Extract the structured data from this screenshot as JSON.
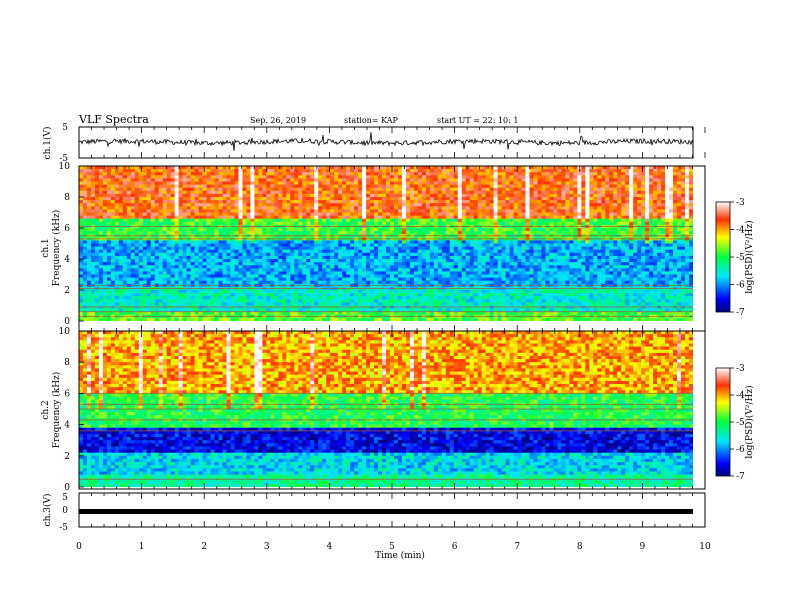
{
  "header": {
    "title": "VLF Spectra",
    "date": "Sep. 26, 2019",
    "station": "station= KAP",
    "start": "start  UT  =   22: 10: 1"
  },
  "colorbar": {
    "label": "log(PSD)(V²/Hz)",
    "ticks": [
      "-3",
      "-4",
      "-5",
      "-6",
      "-7"
    ],
    "range": [
      -7,
      -3
    ]
  },
  "chart_data": [
    {
      "type": "line",
      "ylabel": "ch.1(V)",
      "ylim": [
        -5,
        5
      ],
      "y_ticks": [
        "5",
        "-5"
      ],
      "xlim": [
        0,
        10
      ],
      "description_values": "waveform between about -1.5 and 1 V"
    },
    {
      "type": "heatmap",
      "ylabel": "ch.1\nFrequency (kHz)",
      "ylabel_top": "ch.1",
      "ylabel_bottom": "Frequency (kHz)",
      "ylim": [
        0,
        10
      ],
      "y_ticks": [
        "0",
        "2",
        "4",
        "6",
        "8",
        "10"
      ],
      "xlim": [
        0,
        9.8
      ],
      "bands": [
        {
          "from": 0,
          "to": 0.5,
          "level": -4.8
        },
        {
          "from": 0.5,
          "to": 2.2,
          "level": -5.5
        },
        {
          "from": 2.2,
          "to": 5.2,
          "level": -5.9
        },
        {
          "from": 5.2,
          "to": 6.5,
          "level": -4.9
        },
        {
          "from": 6.5,
          "to": 10,
          "level": -3.7
        }
      ],
      "lines_khz": [
        0.3,
        0.6,
        0.9,
        2.1,
        2.3,
        5.3,
        5.5,
        6.1
      ]
    },
    {
      "type": "heatmap",
      "ylabel_top": "ch.2",
      "ylabel_bottom": "Frequency (kHz)",
      "ylim": [
        0,
        10
      ],
      "y_ticks": [
        "0",
        "2",
        "4",
        "6",
        "8",
        "10"
      ],
      "xlim": [
        0,
        9.8
      ],
      "bands": [
        {
          "from": 0,
          "to": 0.7,
          "level": -5.3
        },
        {
          "from": 0.7,
          "to": 2.2,
          "level": -5.7
        },
        {
          "from": 2.2,
          "to": 3.8,
          "level": -6.6
        },
        {
          "from": 3.8,
          "to": 6.0,
          "level": -5.0
        },
        {
          "from": 6.0,
          "to": 10,
          "level": -4.0
        }
      ],
      "lines_khz": [
        0.5,
        3.6,
        4.3,
        5.0,
        5.3,
        6.0
      ]
    },
    {
      "type": "line",
      "ylabel": "ch.3(V)",
      "ylim": [
        -5,
        5
      ],
      "y_ticks": [
        "5",
        "0",
        "-5"
      ],
      "xlim": [
        0,
        10
      ],
      "x_ticks": [
        "0",
        "1",
        "2",
        "3",
        "4",
        "5",
        "6",
        "7",
        "8",
        "9",
        "10"
      ],
      "xlabel": "Time (min)",
      "constant_value": -1
    }
  ]
}
